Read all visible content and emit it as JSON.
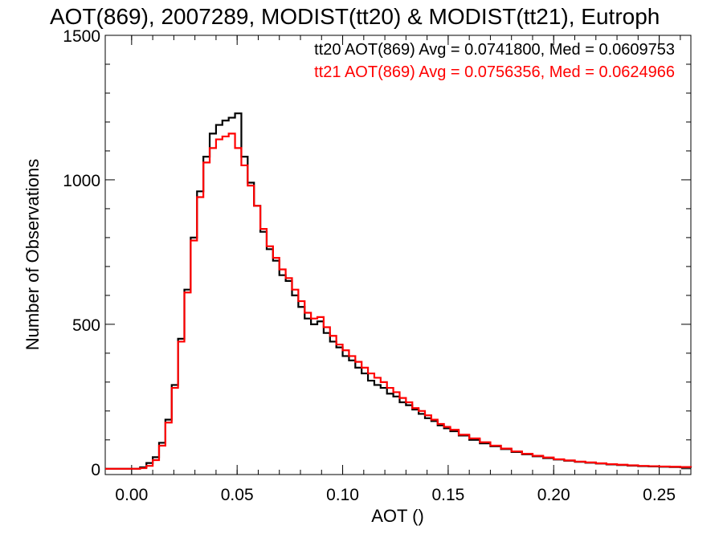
{
  "chart_data": {
    "type": "line",
    "style": "step histogram",
    "title": "AOT(869), 2007289, MODIST(tt20) & MODIST(tt21), Eutroph",
    "xlabel": "AOT ()",
    "ylabel": "Number of Observations",
    "xlim": [
      -0.0125,
      0.265
    ],
    "ylim": [
      -20,
      1500
    ],
    "x_ticks": [
      "0.00",
      "0.05",
      "0.10",
      "0.15",
      "0.20",
      "0.25"
    ],
    "y_ticks": [
      "0",
      "500",
      "1000",
      "1500"
    ],
    "legend_placement": "top-right",
    "grid": false,
    "x": [
      -0.0125,
      0.0,
      0.004,
      0.007,
      0.01,
      0.013,
      0.016,
      0.019,
      0.022,
      0.025,
      0.028,
      0.031,
      0.034,
      0.037,
      0.04,
      0.043,
      0.046,
      0.049,
      0.052,
      0.055,
      0.058,
      0.061,
      0.064,
      0.067,
      0.07,
      0.073,
      0.076,
      0.079,
      0.082,
      0.085,
      0.088,
      0.091,
      0.094,
      0.097,
      0.1,
      0.103,
      0.106,
      0.109,
      0.112,
      0.115,
      0.118,
      0.121,
      0.124,
      0.127,
      0.13,
      0.133,
      0.136,
      0.139,
      0.142,
      0.145,
      0.148,
      0.151,
      0.155,
      0.16,
      0.165,
      0.17,
      0.175,
      0.18,
      0.185,
      0.19,
      0.195,
      0.2,
      0.205,
      0.21,
      0.215,
      0.22,
      0.225,
      0.23,
      0.235,
      0.24,
      0.245,
      0.25,
      0.255,
      0.26,
      0.265
    ],
    "series": [
      {
        "name": "tt20 AOT(869) Avg = 0.0741800, Med = 0.0609753",
        "color": "#000000",
        "values": [
          0,
          0,
          5,
          20,
          40,
          90,
          170,
          290,
          450,
          620,
          800,
          960,
          1080,
          1160,
          1190,
          1205,
          1215,
          1230,
          1080,
          990,
          910,
          820,
          760,
          720,
          670,
          650,
          600,
          560,
          520,
          500,
          510,
          470,
          440,
          420,
          390,
          375,
          350,
          330,
          305,
          290,
          280,
          260,
          250,
          230,
          220,
          205,
          190,
          175,
          165,
          150,
          140,
          130,
          115,
          100,
          88,
          78,
          68,
          58,
          50,
          43,
          37,
          32,
          28,
          24,
          21,
          18,
          15,
          13,
          11,
          9,
          8,
          7,
          6,
          5,
          4
        ]
      },
      {
        "name": "tt21 AOT(869) Avg = 0.0756356, Med = 0.0624966",
        "color": "#ff0000",
        "values": [
          0,
          0,
          2,
          10,
          30,
          80,
          160,
          280,
          440,
          610,
          790,
          940,
          1060,
          1110,
          1140,
          1150,
          1160,
          1110,
          1050,
          980,
          910,
          830,
          770,
          730,
          690,
          660,
          620,
          580,
          540,
          520,
          525,
          490,
          460,
          430,
          410,
          390,
          370,
          350,
          330,
          315,
          300,
          280,
          265,
          245,
          230,
          210,
          200,
          185,
          170,
          155,
          145,
          135,
          118,
          105,
          92,
          80,
          70,
          60,
          52,
          45,
          39,
          33,
          29,
          25,
          22,
          19,
          16,
          14,
          12,
          10,
          9,
          8,
          7,
          6,
          5
        ]
      }
    ]
  }
}
